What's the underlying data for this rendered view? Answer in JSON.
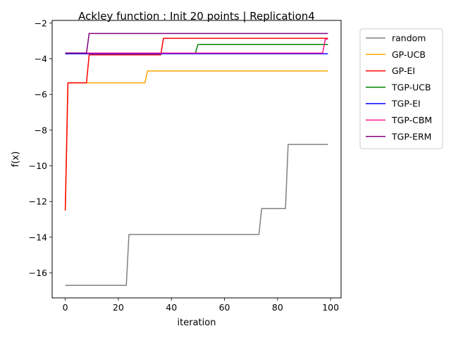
{
  "chart_data": {
    "type": "line",
    "title": "Ackley function : Init 20 points | Replication4",
    "xlabel": "iteration",
    "ylabel": "f(x)",
    "xlim": [
      -4.95,
      103.95
    ],
    "ylim": [
      -17.4,
      -1.85
    ],
    "xticks": [
      0,
      20,
      40,
      60,
      80,
      100
    ],
    "yticks": [
      -16,
      -14,
      -12,
      -10,
      -8,
      -6,
      -4,
      -2
    ],
    "grid": false,
    "legend_placement": "outside-right",
    "series": [
      {
        "name": "random",
        "color": "#808080",
        "x": [
          0,
          23,
          24,
          73,
          74,
          83,
          84,
          99
        ],
        "y": [
          -16.7,
          -16.7,
          -13.85,
          -13.85,
          -12.4,
          -12.4,
          -8.8,
          -8.8
        ]
      },
      {
        "name": "GP-UCB",
        "color": "#ffa500",
        "x": [
          0,
          1,
          30,
          31,
          99
        ],
        "y": [
          -12.5,
          -5.35,
          -5.35,
          -4.68,
          -4.68
        ]
      },
      {
        "name": "GP-EI",
        "color": "#ff0000",
        "x": [
          0,
          1,
          8,
          9,
          36,
          37,
          99
        ],
        "y": [
          -12.5,
          -5.35,
          -5.35,
          -3.78,
          -3.78,
          -2.85,
          -2.85
        ]
      },
      {
        "name": "TGP-UCB",
        "color": "#008000",
        "x": [
          0,
          49,
          50,
          99
        ],
        "y": [
          -3.7,
          -3.7,
          -3.2,
          -3.2
        ]
      },
      {
        "name": "TGP-EI",
        "color": "#0000ff",
        "x": [
          0,
          99
        ],
        "y": [
          -3.72,
          -3.72
        ]
      },
      {
        "name": "TGP-CBM",
        "color": "#ff1493",
        "x": [
          0,
          97,
          98,
          99
        ],
        "y": [
          -3.68,
          -3.68,
          -2.9,
          -2.9
        ]
      },
      {
        "name": "TGP-ERM",
        "color": "#800080",
        "x": [
          0,
          8,
          9,
          99
        ],
        "y": [
          -3.68,
          -3.68,
          -2.58,
          -2.58
        ]
      }
    ]
  }
}
